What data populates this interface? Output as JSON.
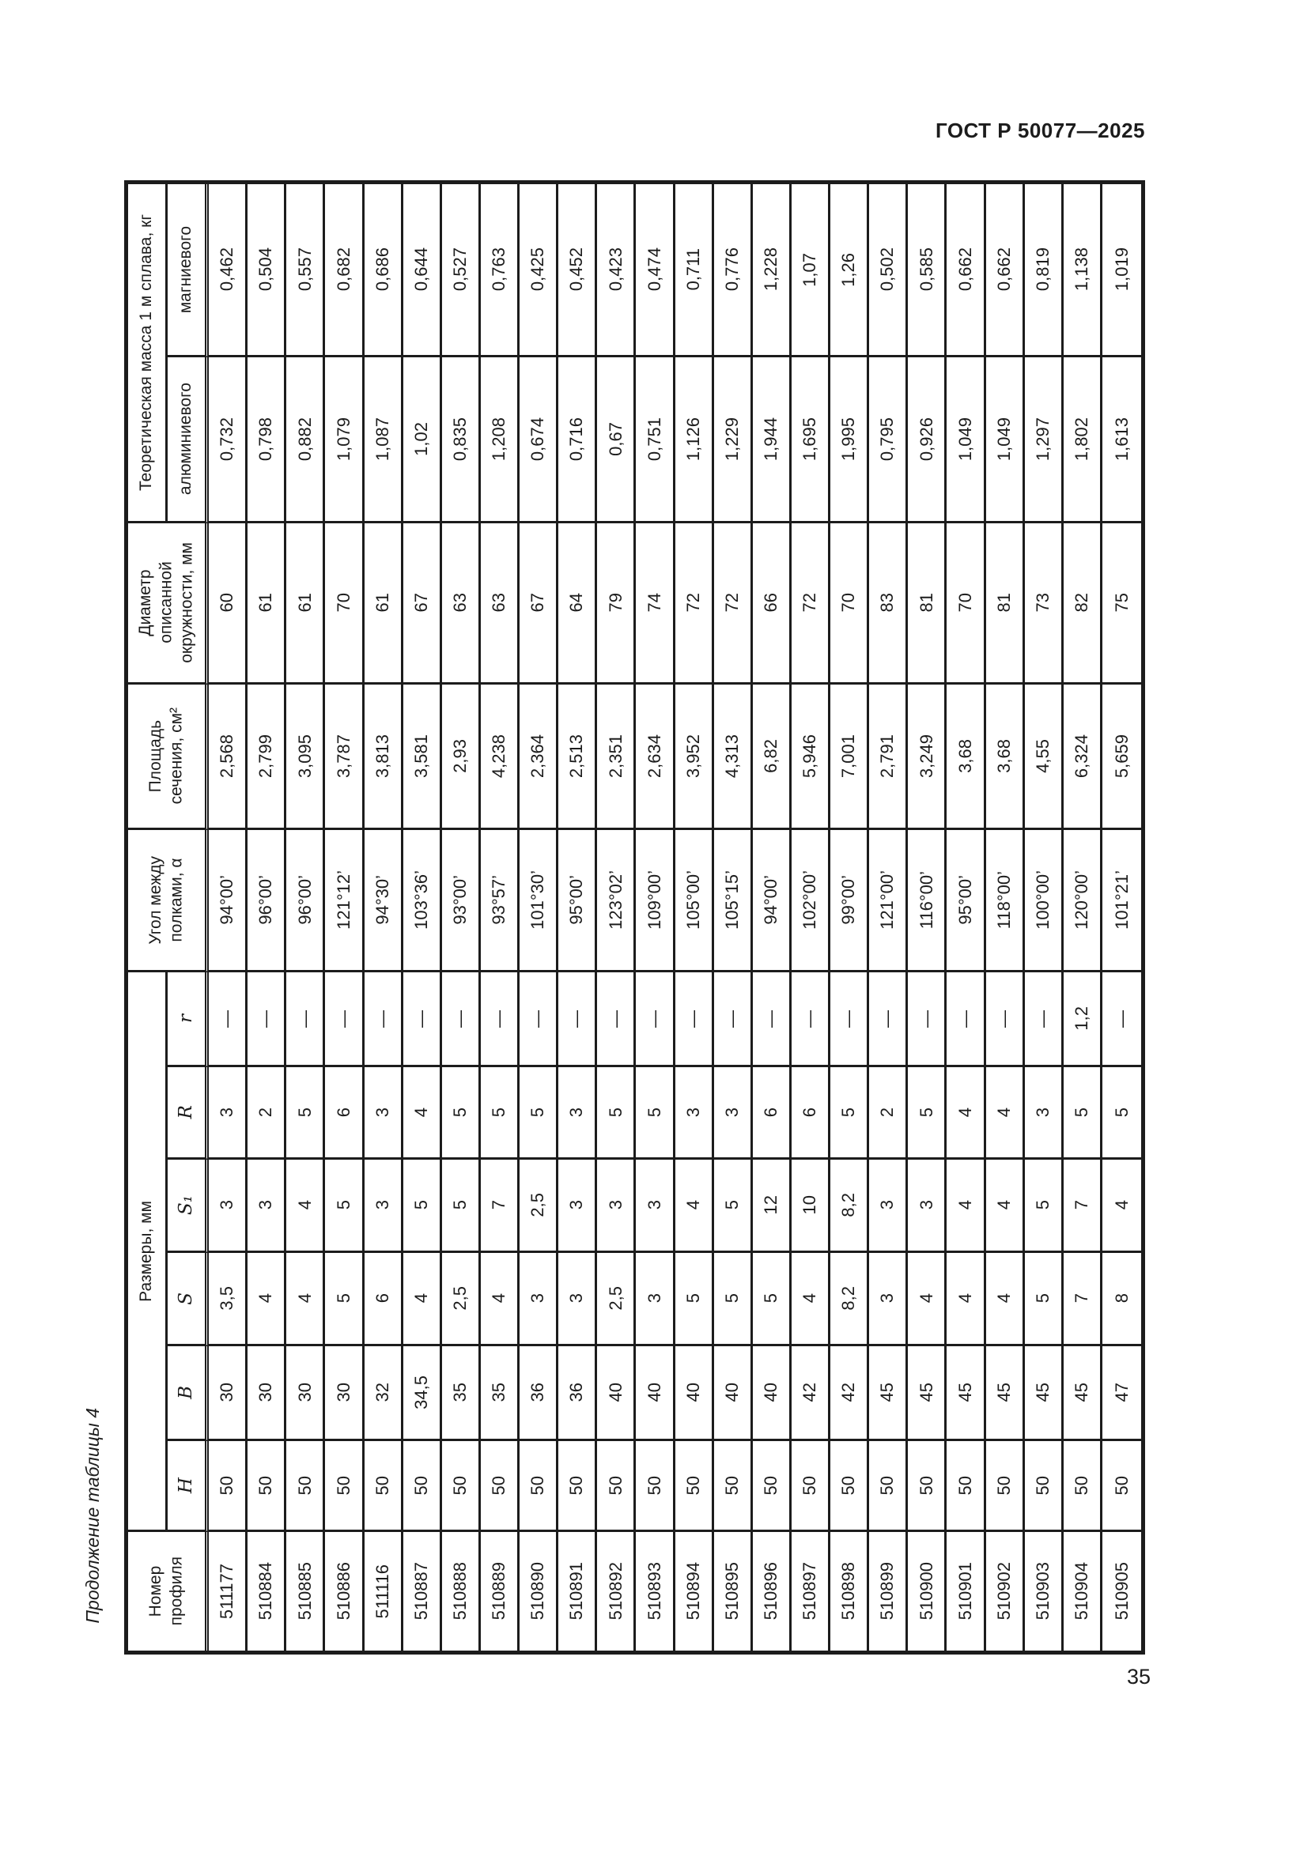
{
  "page": {
    "header": "ГОСТ Р 50077—2025",
    "table_caption": "Продолжение таблицы 4",
    "page_number": "35"
  },
  "table": {
    "col_headers": {
      "profile": "Номер\nпрофиля",
      "dimensions_group": "Размеры, мм",
      "dims": [
        "H",
        "B",
        "S",
        "S₁",
        "R",
        "r"
      ],
      "angle": "Угол между\nполками, α",
      "area": "Площадь\nсечения, см²",
      "diameter": "Диаметр\nописанной\nокружности, мм",
      "mass_group": "Теоретическая масса 1 м сплава, кг",
      "mass_al": "алюминиевого",
      "mass_mg": "магниевого"
    },
    "rows": [
      {
        "profile": "511177",
        "H": "50",
        "B": "30",
        "S": "3,5",
        "S1": "3",
        "R": "3",
        "r": "—",
        "angle": "94°00’",
        "area": "2,568",
        "diameter": "60",
        "mass_al": "0,732",
        "mass_mg": "0,462"
      },
      {
        "profile": "510884",
        "H": "50",
        "B": "30",
        "S": "4",
        "S1": "3",
        "R": "2",
        "r": "—",
        "angle": "96°00’",
        "area": "2,799",
        "diameter": "61",
        "mass_al": "0,798",
        "mass_mg": "0,504"
      },
      {
        "profile": "510885",
        "H": "50",
        "B": "30",
        "S": "4",
        "S1": "4",
        "R": "5",
        "r": "—",
        "angle": "96°00’",
        "area": "3,095",
        "diameter": "61",
        "mass_al": "0,882",
        "mass_mg": "0,557"
      },
      {
        "profile": "510886",
        "H": "50",
        "B": "30",
        "S": "5",
        "S1": "5",
        "R": "6",
        "r": "—",
        "angle": "121°12’",
        "area": "3,787",
        "diameter": "70",
        "mass_al": "1,079",
        "mass_mg": "0,682"
      },
      {
        "profile": "511116",
        "H": "50",
        "B": "32",
        "S": "6",
        "S1": "3",
        "R": "3",
        "r": "—",
        "angle": "94°30’",
        "area": "3,813",
        "diameter": "61",
        "mass_al": "1,087",
        "mass_mg": "0,686"
      },
      {
        "profile": "510887",
        "H": "50",
        "B": "34,5",
        "S": "4",
        "S1": "5",
        "R": "4",
        "r": "—",
        "angle": "103°36’",
        "area": "3,581",
        "diameter": "67",
        "mass_al": "1,02",
        "mass_mg": "0,644"
      },
      {
        "profile": "510888",
        "H": "50",
        "B": "35",
        "S": "2,5",
        "S1": "5",
        "R": "5",
        "r": "—",
        "angle": "93°00’",
        "area": "2,93",
        "diameter": "63",
        "mass_al": "0,835",
        "mass_mg": "0,527"
      },
      {
        "profile": "510889",
        "H": "50",
        "B": "35",
        "S": "4",
        "S1": "7",
        "R": "5",
        "r": "—",
        "angle": "93°57’",
        "area": "4,238",
        "diameter": "63",
        "mass_al": "1,208",
        "mass_mg": "0,763"
      },
      {
        "profile": "510890",
        "H": "50",
        "B": "36",
        "S": "3",
        "S1": "2,5",
        "R": "5",
        "r": "—",
        "angle": "101°30’",
        "area": "2,364",
        "diameter": "67",
        "mass_al": "0,674",
        "mass_mg": "0,425"
      },
      {
        "profile": "510891",
        "H": "50",
        "B": "36",
        "S": "3",
        "S1": "3",
        "R": "3",
        "r": "—",
        "angle": "95°00’",
        "area": "2,513",
        "diameter": "64",
        "mass_al": "0,716",
        "mass_mg": "0,452"
      },
      {
        "profile": "510892",
        "H": "50",
        "B": "40",
        "S": "2,5",
        "S1": "3",
        "R": "5",
        "r": "—",
        "angle": "123°02’",
        "area": "2,351",
        "diameter": "79",
        "mass_al": "0,67",
        "mass_mg": "0,423"
      },
      {
        "profile": "510893",
        "H": "50",
        "B": "40",
        "S": "3",
        "S1": "3",
        "R": "5",
        "r": "—",
        "angle": "109°00’",
        "area": "2,634",
        "diameter": "74",
        "mass_al": "0,751",
        "mass_mg": "0,474"
      },
      {
        "profile": "510894",
        "H": "50",
        "B": "40",
        "S": "5",
        "S1": "4",
        "R": "3",
        "r": "—",
        "angle": "105°00’",
        "area": "3,952",
        "diameter": "72",
        "mass_al": "1,126",
        "mass_mg": "0,711"
      },
      {
        "profile": "510895",
        "H": "50",
        "B": "40",
        "S": "5",
        "S1": "5",
        "R": "3",
        "r": "—",
        "angle": "105°15’",
        "area": "4,313",
        "diameter": "72",
        "mass_al": "1,229",
        "mass_mg": "0,776"
      },
      {
        "profile": "510896",
        "H": "50",
        "B": "40",
        "S": "5",
        "S1": "12",
        "R": "6",
        "r": "—",
        "angle": "94°00’",
        "area": "6,82",
        "diameter": "66",
        "mass_al": "1,944",
        "mass_mg": "1,228"
      },
      {
        "profile": "510897",
        "H": "50",
        "B": "42",
        "S": "4",
        "S1": "10",
        "R": "6",
        "r": "—",
        "angle": "102°00’",
        "area": "5,946",
        "diameter": "72",
        "mass_al": "1,695",
        "mass_mg": "1,07"
      },
      {
        "profile": "510898",
        "H": "50",
        "B": "42",
        "S": "8,2",
        "S1": "8,2",
        "R": "5",
        "r": "—",
        "angle": "99°00’",
        "area": "7,001",
        "diameter": "70",
        "mass_al": "1,995",
        "mass_mg": "1,26"
      },
      {
        "profile": "510899",
        "H": "50",
        "B": "45",
        "S": "3",
        "S1": "3",
        "R": "2",
        "r": "—",
        "angle": "121°00’",
        "area": "2,791",
        "diameter": "83",
        "mass_al": "0,795",
        "mass_mg": "0,502"
      },
      {
        "profile": "510900",
        "H": "50",
        "B": "45",
        "S": "4",
        "S1": "3",
        "R": "5",
        "r": "—",
        "angle": "116°00’",
        "area": "3,249",
        "diameter": "81",
        "mass_al": "0,926",
        "mass_mg": "0,585"
      },
      {
        "profile": "510901",
        "H": "50",
        "B": "45",
        "S": "4",
        "S1": "4",
        "R": "4",
        "r": "—",
        "angle": "95°00’",
        "area": "3,68",
        "diameter": "70",
        "mass_al": "1,049",
        "mass_mg": "0,662"
      },
      {
        "profile": "510902",
        "H": "50",
        "B": "45",
        "S": "4",
        "S1": "4",
        "R": "4",
        "r": "—",
        "angle": "118°00’",
        "area": "3,68",
        "diameter": "81",
        "mass_al": "1,049",
        "mass_mg": "0,662"
      },
      {
        "profile": "510903",
        "H": "50",
        "B": "45",
        "S": "5",
        "S1": "5",
        "R": "3",
        "r": "—",
        "angle": "100°00’",
        "area": "4,55",
        "diameter": "73",
        "mass_al": "1,297",
        "mass_mg": "0,819"
      },
      {
        "profile": "510904",
        "H": "50",
        "B": "45",
        "S": "7",
        "S1": "7",
        "R": "5",
        "r": "1,2",
        "angle": "120°00’",
        "area": "6,324",
        "diameter": "82",
        "mass_al": "1,802",
        "mass_mg": "1,138"
      },
      {
        "profile": "510905",
        "H": "50",
        "B": "47",
        "S": "8",
        "S1": "4",
        "R": "5",
        "r": "—",
        "angle": "101°21’",
        "area": "5,659",
        "diameter": "75",
        "mass_al": "1,613",
        "mass_mg": "1,019"
      }
    ]
  }
}
